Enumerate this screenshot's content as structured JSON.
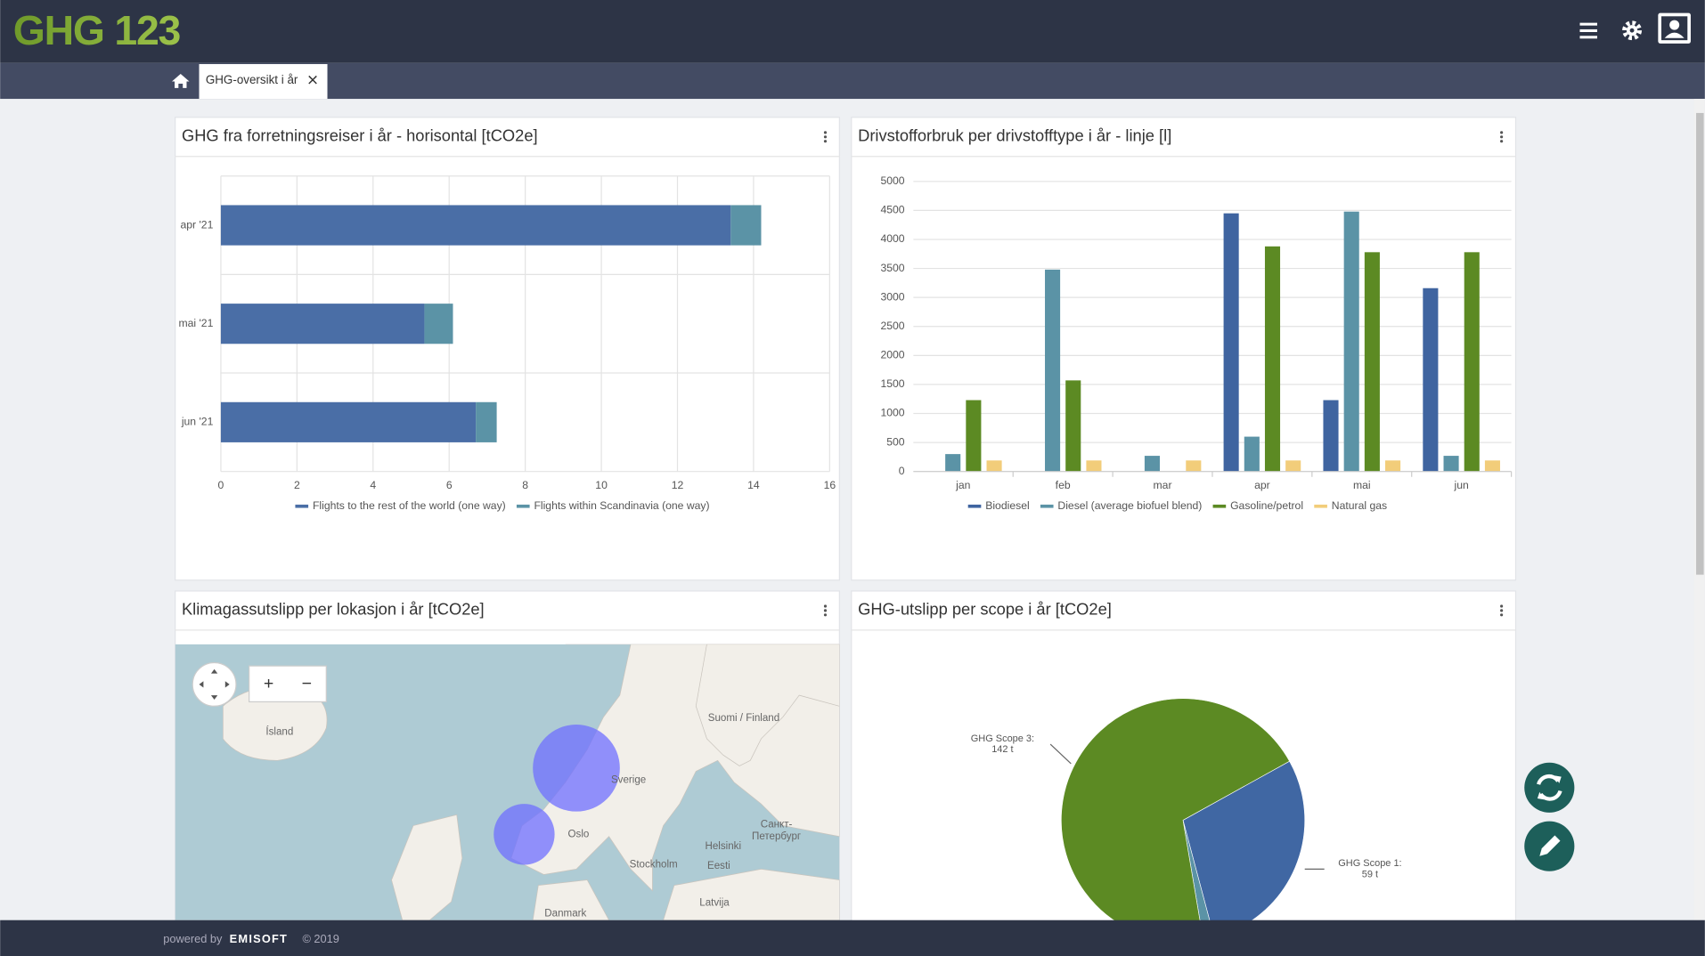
{
  "header": {
    "logo": "GHG 123",
    "tab": "GHG-oversikt i år"
  },
  "footer": {
    "powered": "powered by",
    "brand": "EMISOFT",
    "copyright": "© 2019"
  },
  "panels": [
    {
      "title": "GHG fra forretningsreiser i år - horisontal [tCO2e]",
      "chart_data": {
        "type": "hbar",
        "stacked": true,
        "categories": [
          "apr '21",
          "mai '21",
          "jun '21"
        ],
        "series": [
          {
            "name": "Flights to the rest of the world (one way)",
            "color": "#4a6ea6",
            "values": [
              13.4,
              5.35,
              6.7
            ]
          },
          {
            "name": "Flights within Scandinavia (one way)",
            "color": "#5b93a6",
            "values": [
              0.8,
              0.75,
              0.55
            ]
          }
        ],
        "xlim": [
          0,
          16
        ],
        "xticks": [
          0,
          2,
          4,
          6,
          8,
          10,
          12,
          14,
          16
        ],
        "grid": true
      }
    },
    {
      "title": "Drivstofforbruk per drivstofftype i år - linje [l]",
      "chart_data": {
        "type": "bar",
        "categories": [
          "jan",
          "feb",
          "mar",
          "apr",
          "mai",
          "jun"
        ],
        "series": [
          {
            "name": "Biodiesel",
            "color": "#3f64a0",
            "values": [
              0,
              0,
              0,
              4450,
              1230,
              3160
            ]
          },
          {
            "name": "Diesel (average biofuel blend)",
            "color": "#5b93a6",
            "values": [
              300,
              3480,
              270,
              600,
              4480,
              270
            ]
          },
          {
            "name": "Gasoline/petrol",
            "color": "#5c8a23",
            "values": [
              1230,
              1570,
              0,
              3880,
              3780,
              3780
            ]
          },
          {
            "name": "Natural gas",
            "color": "#f2cd7a",
            "values": [
              190,
              190,
              190,
              190,
              190,
              190
            ]
          }
        ],
        "ylim": [
          0,
          5000
        ],
        "yticks": [
          0,
          500,
          1000,
          1500,
          2000,
          2500,
          3000,
          3500,
          4000,
          4500,
          5000
        ],
        "grid": true
      }
    },
    {
      "title": "Klimagassutslipp per lokasjon i år [tCO2e]",
      "map": {
        "zoom_in": "+",
        "zoom_out": "−",
        "labels": [
          "Ísland",
          "Sverige",
          "Suomi / Finland",
          "Oslo",
          "Stockholm",
          "Helsinki",
          "Санкт-",
          "Петербург",
          "Eesti",
          "Latvija",
          "Danmark"
        ]
      }
    },
    {
      "title": "GHG-utslipp per scope i år [tCO2e]",
      "chart_data": {
        "type": "pie",
        "categories": [
          "GHG Scope 1:",
          null,
          "GHG Scope 3:"
        ],
        "values": [
          59,
          3,
          142
        ],
        "value_labels": [
          "59 t",
          null,
          "142 t"
        ],
        "colors": [
          "#4067a3",
          "#5b93a6",
          "#5c8a23"
        ]
      }
    }
  ]
}
